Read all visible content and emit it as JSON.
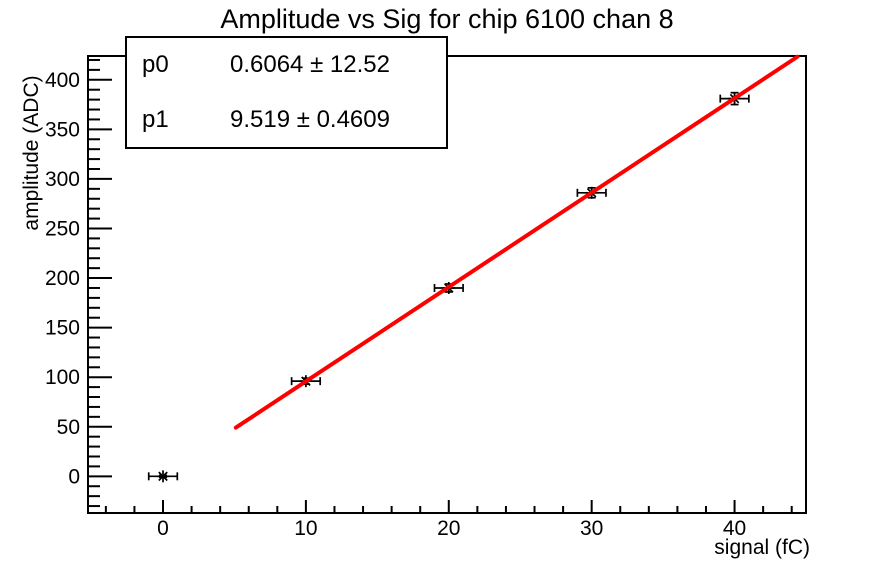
{
  "stats_box": {
    "rows": [
      {
        "label": "p0",
        "value": "0.6064 ± 12.52"
      },
      {
        "label": "p1",
        "value": "9.519 ± 0.4609"
      }
    ]
  },
  "chart_data": {
    "type": "scatter",
    "title": "Amplitude vs Sig for chip 6100 chan 8",
    "xlabel": "signal (fC)",
    "ylabel": "amplitude (ADC)",
    "xlim": [
      -5.25,
      45
    ],
    "ylim": [
      -37,
      424
    ],
    "grid": false,
    "legend": null,
    "background": "#ffffff",
    "axis_color": "#000000",
    "x_major_ticks": [
      0,
      10,
      20,
      30,
      40
    ],
    "x_minor_step": 2,
    "y_major_ticks": [
      0,
      50,
      100,
      150,
      200,
      250,
      300,
      350,
      400
    ],
    "y_minor_step": 10,
    "marker": "asterisk",
    "marker_color": "#000000",
    "points": [
      {
        "x": 0,
        "y": 0,
        "xerr": 1,
        "yerr": 1
      },
      {
        "x": 10,
        "y": 96,
        "xerr": 1,
        "yerr": 3
      },
      {
        "x": 20,
        "y": 190,
        "xerr": 1,
        "yerr": 4
      },
      {
        "x": 30,
        "y": 286,
        "xerr": 1,
        "yerr": 5
      },
      {
        "x": 40,
        "y": 381,
        "xerr": 1,
        "yerr": 6
      }
    ],
    "fit": {
      "type": "linear",
      "p0": 0.6064,
      "p0_err": 12.52,
      "p1": 9.519,
      "p1_err": 0.4609,
      "color": "#ff0000",
      "line_width": 4,
      "x_range": [
        5.1,
        44.4
      ]
    }
  }
}
